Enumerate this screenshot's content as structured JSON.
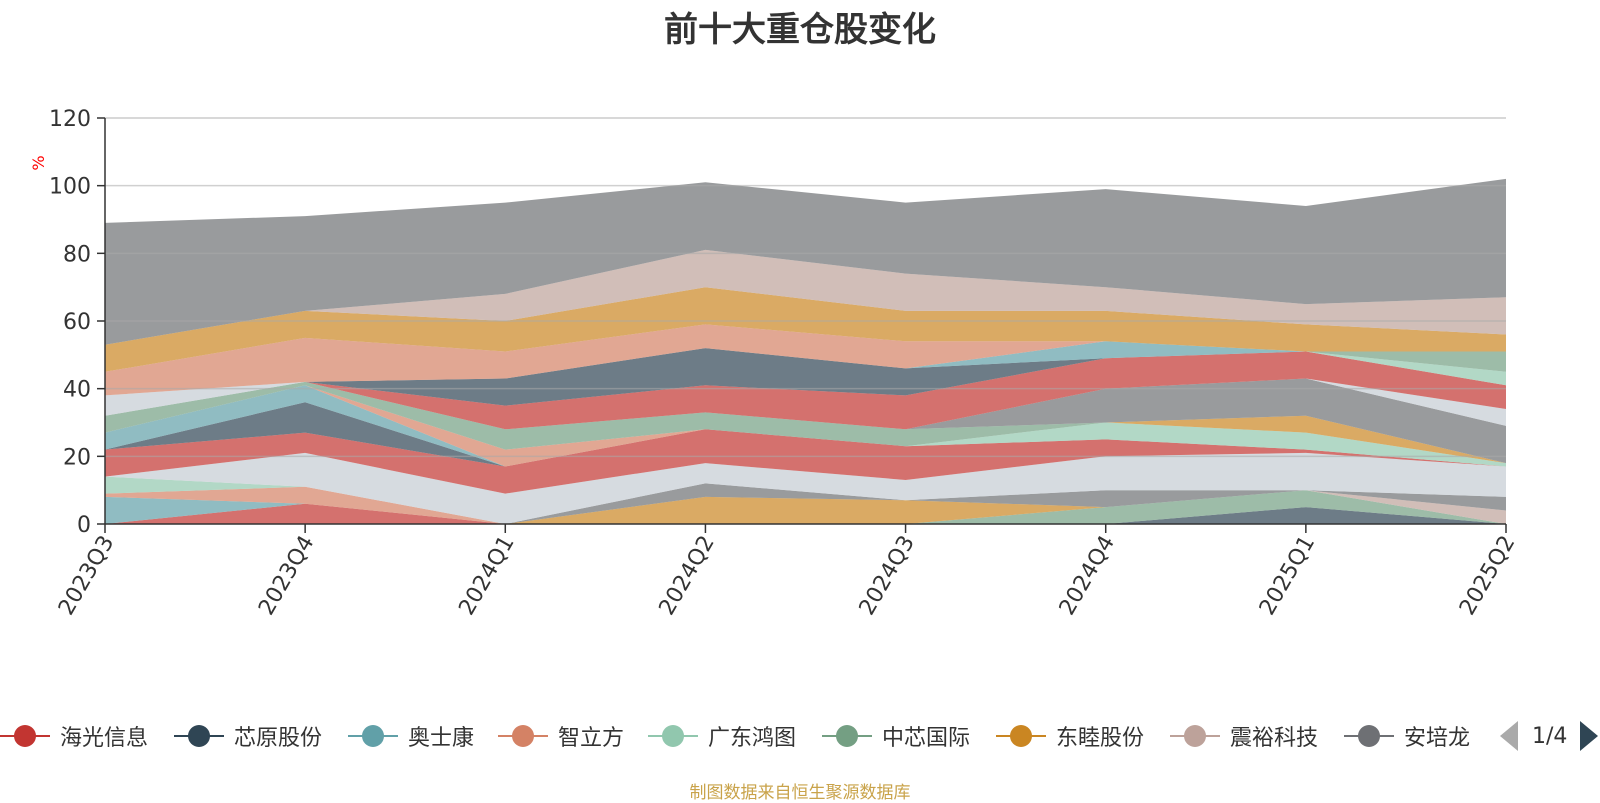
{
  "chart_data": {
    "type": "area",
    "title": "前十大重仓股变化",
    "ylabel": "%",
    "ylim": [
      0,
      120
    ],
    "yticks": [
      0,
      20,
      40,
      60,
      80,
      100,
      120
    ],
    "stacked": true,
    "categories": [
      "2023Q3",
      "2023Q4",
      "2024Q1",
      "2024Q2",
      "2024Q3",
      "2024Q4",
      "2025Q1",
      "2025Q2"
    ],
    "grid": true,
    "legend_position": "bottom",
    "series": [
      {
        "name": "海光信息",
        "color": "#c23531",
        "values": [
          0,
          6,
          0,
          0,
          0,
          0,
          0,
          0
        ]
      },
      {
        "name": "芯原股份",
        "color": "#2f4554",
        "values": [
          0,
          0,
          0,
          0,
          0,
          0,
          5,
          0
        ]
      },
      {
        "name": "奥士康",
        "color": "#61a0a8",
        "values": [
          8,
          0,
          0,
          0,
          0,
          0,
          0,
          0
        ]
      },
      {
        "name": "智立方",
        "color": "#d48265",
        "values": [
          1,
          5,
          0,
          0,
          0,
          0,
          0,
          0
        ]
      },
      {
        "name": "广东鸿图",
        "color": "#91c7ae",
        "values": [
          5,
          0,
          0,
          0,
          0,
          0,
          0,
          0
        ]
      },
      {
        "name": "中芯国际",
        "color": "#749f83",
        "values": [
          0,
          0,
          0,
          0,
          0,
          5,
          5,
          0
        ]
      },
      {
        "name": "东睦股份",
        "color": "#ca8622",
        "values": [
          0,
          0,
          0,
          8,
          7,
          0,
          0,
          0
        ]
      },
      {
        "name": "震裕科技",
        "color": "#bda29a",
        "values": [
          0,
          0,
          0,
          0,
          0,
          0,
          0,
          4
        ]
      },
      {
        "name": "安培龙",
        "color": "#6e7074",
        "values": [
          0,
          0,
          0,
          4,
          0,
          5,
          0,
          4
        ]
      },
      {
        "name": "",
        "color": "#c4ccd3",
        "values": [
          0,
          10,
          9,
          6,
          6,
          10,
          11,
          9
        ]
      },
      {
        "name": "",
        "color": "#c23531",
        "values": [
          8,
          6,
          8,
          10,
          10,
          5,
          1,
          0
        ]
      },
      {
        "name": "",
        "color": "#2f4554",
        "values": [
          0,
          9,
          0,
          0,
          0,
          0,
          0,
          0
        ]
      },
      {
        "name": "",
        "color": "#61a0a8",
        "values": [
          5,
          5,
          0,
          0,
          0,
          0,
          0,
          0
        ]
      },
      {
        "name": "",
        "color": "#d48265",
        "values": [
          0,
          0,
          5,
          0,
          0,
          0,
          0,
          0
        ]
      },
      {
        "name": "",
        "color": "#91c7ae",
        "values": [
          0,
          0,
          0,
          0,
          0,
          5,
          5,
          1
        ]
      },
      {
        "name": "",
        "color": "#749f83",
        "values": [
          5,
          1,
          6,
          5,
          5,
          0,
          0,
          0
        ]
      },
      {
        "name": "",
        "color": "#ca8622",
        "values": [
          0,
          0,
          0,
          0,
          0,
          0,
          5,
          0
        ]
      },
      {
        "name": "",
        "color": "#6e7074",
        "values": [
          0,
          0,
          0,
          0,
          0,
          10,
          11,
          11
        ]
      },
      {
        "name": "",
        "color": "#c4ccd3",
        "values": [
          6,
          0,
          0,
          0,
          0,
          0,
          0,
          5
        ]
      },
      {
        "name": "",
        "color": "#c23531",
        "values": [
          0,
          0,
          7,
          8,
          10,
          9,
          8,
          7
        ]
      },
      {
        "name": "",
        "color": "#2f4554",
        "values": [
          0,
          0,
          8,
          11,
          8,
          0,
          0,
          0
        ]
      },
      {
        "name": "",
        "color": "#61a0a8",
        "values": [
          0,
          0,
          0,
          0,
          0,
          5,
          0,
          0
        ]
      },
      {
        "name": "",
        "color": "#d48265",
        "values": [
          7,
          13,
          8,
          7,
          8,
          0,
          0,
          0
        ]
      },
      {
        "name": "",
        "color": "#91c7ae",
        "values": [
          0,
          0,
          0,
          0,
          0,
          0,
          0,
          4
        ]
      },
      {
        "name": "",
        "color": "#749f83",
        "values": [
          0,
          0,
          0,
          0,
          0,
          0,
          0,
          6
        ]
      },
      {
        "name": "",
        "color": "#ca8622",
        "values": [
          8,
          8,
          9,
          11,
          9,
          9,
          8,
          5
        ]
      },
      {
        "name": "",
        "color": "#bda29a",
        "values": [
          0,
          0,
          8,
          11,
          11,
          7,
          6,
          11
        ]
      },
      {
        "name": "",
        "color": "#6e7074",
        "values": [
          36,
          28,
          27,
          20,
          21,
          29,
          29,
          35
        ]
      }
    ]
  },
  "legend": {
    "items": [
      {
        "label": "海光信息",
        "color": "#c23531"
      },
      {
        "label": "芯原股份",
        "color": "#2f4554"
      },
      {
        "label": "奥士康",
        "color": "#61a0a8"
      },
      {
        "label": "智立方",
        "color": "#d48265"
      },
      {
        "label": "广东鸿图",
        "color": "#91c7ae"
      },
      {
        "label": "中芯国际",
        "color": "#749f83"
      },
      {
        "label": "东睦股份",
        "color": "#ca8622"
      },
      {
        "label": "震裕科技",
        "color": "#bda29a"
      },
      {
        "label": "安培龙",
        "color": "#6e7074"
      }
    ],
    "page_indicator": "1/4",
    "prev_icon": "triangle-left-icon",
    "next_icon": "triangle-right-icon"
  },
  "source_note": "制图数据来自恒生聚源数据库"
}
